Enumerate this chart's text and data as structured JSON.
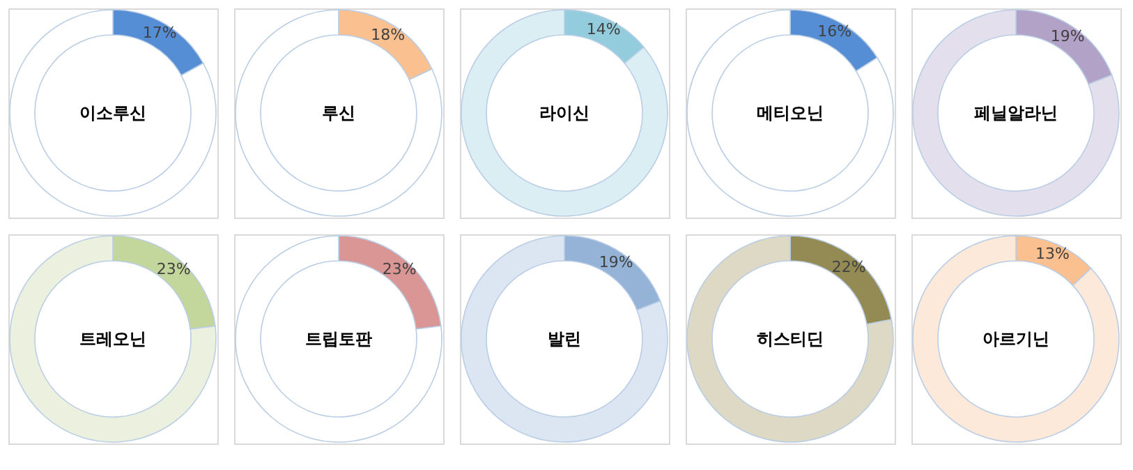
{
  "chart_data": [
    {
      "type": "donut",
      "title": "이소루신",
      "categories": [
        null,
        null
      ],
      "values": [
        17,
        83
      ],
      "colors": [
        "#558ed5",
        "#ffffff"
      ],
      "value_labels": [
        "17%",
        null
      ]
    },
    {
      "type": "donut",
      "title": "루신",
      "categories": [
        null,
        null
      ],
      "values": [
        18,
        82
      ],
      "colors": [
        "#fac090",
        "#ffffff"
      ],
      "value_labels": [
        "18%",
        null
      ]
    },
    {
      "type": "donut",
      "title": "라이신",
      "categories": [
        null,
        null
      ],
      "values": [
        14,
        86
      ],
      "colors": [
        "#93cddd",
        "#dbeef4"
      ],
      "value_labels": [
        "14%",
        null
      ]
    },
    {
      "type": "donut",
      "title": "메티오닌",
      "categories": [
        null,
        null
      ],
      "values": [
        16,
        84
      ],
      "colors": [
        "#558ed5",
        "#ffffff"
      ],
      "value_labels": [
        "16%",
        null
      ]
    },
    {
      "type": "donut",
      "title": "페닐알라닌",
      "categories": [
        null,
        null
      ],
      "values": [
        19,
        81
      ],
      "colors": [
        "#b3a2c7",
        "#e4dfec"
      ],
      "value_labels": [
        "19%",
        null
      ]
    },
    {
      "type": "donut",
      "title": "트레오닌",
      "categories": [
        null,
        null
      ],
      "values": [
        23,
        77
      ],
      "colors": [
        "#c3d69b",
        "#ebf1de"
      ],
      "value_labels": [
        "23%",
        null
      ]
    },
    {
      "type": "donut",
      "title": "트립토판",
      "categories": [
        null,
        null
      ],
      "values": [
        23,
        77
      ],
      "colors": [
        "#d99694",
        "#ffffff"
      ],
      "value_labels": [
        "23%",
        null
      ]
    },
    {
      "type": "donut",
      "title": "발린",
      "categories": [
        null,
        null
      ],
      "values": [
        19,
        81
      ],
      "colors": [
        "#95b3d7",
        "#dce6f2"
      ],
      "value_labels": [
        "19%",
        null
      ]
    },
    {
      "type": "donut",
      "title": "히스티딘",
      "categories": [
        null,
        null
      ],
      "values": [
        22,
        78
      ],
      "colors": [
        "#948a54",
        "#ddd9c4"
      ],
      "value_labels": [
        "22%",
        null
      ]
    },
    {
      "type": "donut",
      "title": "아르기닌",
      "categories": [
        null,
        null
      ],
      "values": [
        13,
        87
      ],
      "colors": [
        "#fac090",
        "#fde9d9"
      ],
      "value_labels": [
        "13%",
        null
      ]
    }
  ]
}
